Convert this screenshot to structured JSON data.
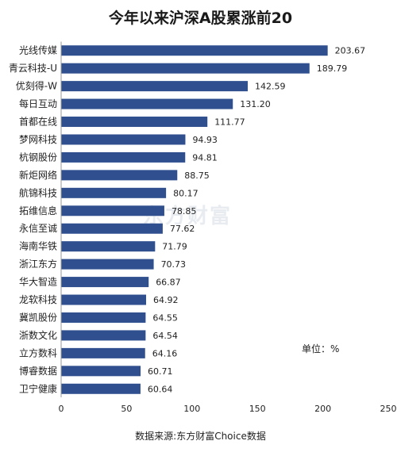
{
  "chart_data": {
    "type": "bar",
    "orientation": "horizontal",
    "title": "今年以来沪深A股累涨前20",
    "categories": [
      "光线传媒",
      "青云科技-U",
      "优刻得-W",
      "每日互动",
      "首都在线",
      "梦网科技",
      "杭钢股份",
      "新炬网络",
      "航锦科技",
      "拓维信息",
      "永信至诚",
      "海南华铁",
      "浙江东方",
      "华大智造",
      "龙软科技",
      "冀凯股份",
      "浙数文化",
      "立方数科",
      "博睿数据",
      "卫宁健康"
    ],
    "values": [
      203.67,
      189.79,
      142.59,
      131.2,
      111.77,
      94.93,
      94.81,
      88.75,
      80.17,
      78.85,
      77.62,
      71.79,
      70.73,
      66.87,
      64.92,
      64.55,
      64.54,
      64.16,
      60.71,
      60.64
    ],
    "value_labels": [
      "203.67",
      "189.79",
      "142.59",
      "131.20",
      "111.77",
      "94.93",
      "94.81",
      "88.75",
      "80.17",
      "78.85",
      "77.62",
      "71.79",
      "70.73",
      "66.87",
      "64.92",
      "64.55",
      "64.54",
      "64.16",
      "60.71",
      "60.64"
    ],
    "xlim": [
      0,
      250
    ],
    "xticks": [
      "0",
      "50",
      "100",
      "150",
      "200",
      "250"
    ],
    "xtick_values": [
      0,
      50,
      100,
      150,
      200,
      250
    ],
    "unit_label": "单位：%",
    "source": "数据来源:东方财富Choice数据",
    "watermark": "东方财富",
    "bar_color": "#2f4f8f",
    "grid": false
  }
}
